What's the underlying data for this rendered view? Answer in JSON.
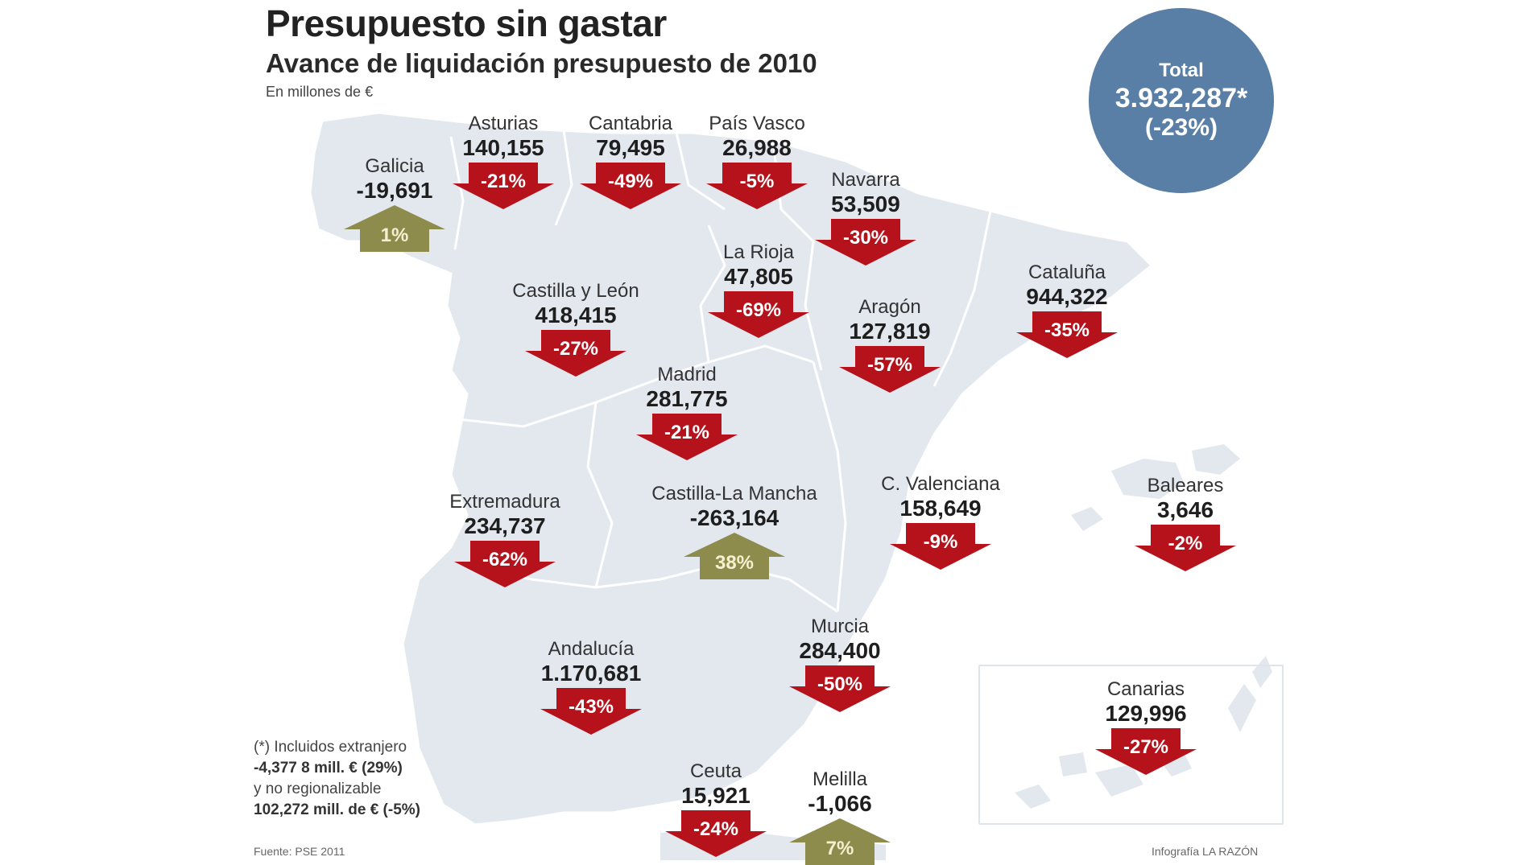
{
  "header": {
    "title": "Presupuesto sin gastar",
    "subtitle": "Avance de liquidación presupuesto de 2010",
    "units": "En millones de €"
  },
  "total": {
    "label": "Total",
    "value": "3.932,287*",
    "pct": "(-23%)"
  },
  "colors": {
    "map_fill": "#e3e7ee",
    "map_border": "#ffffff",
    "down_arrow": "#b5121b",
    "up_arrow": "#8e8c4c",
    "total_circle": "#5a7fa6"
  },
  "regions": [
    {
      "name": "Galicia",
      "value": "-19,691",
      "pct": "1%",
      "dir": "up"
    },
    {
      "name": "Asturias",
      "value": "140,155",
      "pct": "-21%",
      "dir": "down"
    },
    {
      "name": "Cantabria",
      "value": "79,495",
      "pct": "-49%",
      "dir": "down"
    },
    {
      "name": "País Vasco",
      "value": "26,988",
      "pct": "-5%",
      "dir": "down"
    },
    {
      "name": "Navarra",
      "value": "53,509",
      "pct": "-30%",
      "dir": "down"
    },
    {
      "name": "La Rioja",
      "value": "47,805",
      "pct": "-69%",
      "dir": "down"
    },
    {
      "name": "Castilla y León",
      "value": "418,415",
      "pct": "-27%",
      "dir": "down"
    },
    {
      "name": "Aragón",
      "value": "127,819",
      "pct": "-57%",
      "dir": "down"
    },
    {
      "name": "Cataluña",
      "value": "944,322",
      "pct": "-35%",
      "dir": "down"
    },
    {
      "name": "Madrid",
      "value": "281,775",
      "pct": "-21%",
      "dir": "down"
    },
    {
      "name": "Extremadura",
      "value": "234,737",
      "pct": "-62%",
      "dir": "down"
    },
    {
      "name": "Castilla-La Mancha",
      "value": "-263,164",
      "pct": "38%",
      "dir": "up"
    },
    {
      "name": "C. Valenciana",
      "value": "158,649",
      "pct": "-9%",
      "dir": "down"
    },
    {
      "name": "Baleares",
      "value": "3,646",
      "pct": "-2%",
      "dir": "down"
    },
    {
      "name": "Murcia",
      "value": "284,400",
      "pct": "-50%",
      "dir": "down"
    },
    {
      "name": "Andalucía",
      "value": "1.170,681",
      "pct": "-43%",
      "dir": "down"
    },
    {
      "name": "Canarias",
      "value": "129,996",
      "pct": "-27%",
      "dir": "down"
    },
    {
      "name": "Ceuta",
      "value": "15,921",
      "pct": "-24%",
      "dir": "down"
    },
    {
      "name": "Melilla",
      "value": "-1,066",
      "pct": "7%",
      "dir": "up"
    }
  ],
  "footnote": {
    "line1": "(*) Incluidos extranjero",
    "line2": "-4,377 8 mill. € (29%)",
    "line3": "y no regionalizable",
    "line4": "102,272 mill. de € (-5%)"
  },
  "source": "Fuente: PSE 2011",
  "credit": "Infografía LA RAZÓN"
}
